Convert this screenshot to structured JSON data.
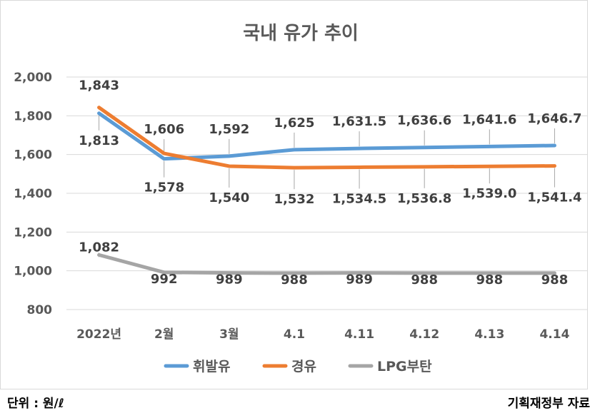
{
  "chart_data": {
    "type": "line",
    "title": "국내 유가 추이",
    "categories": [
      "2022년",
      "2월",
      "3월",
      "4.1",
      "4.11",
      "4.12",
      "4.13",
      "4.14"
    ],
    "ylim": [
      800,
      2000
    ],
    "yticks": [
      "800",
      "1,000",
      "1,200",
      "1,400",
      "1,600",
      "1,800",
      "2,000"
    ],
    "grid": true,
    "legend_position": "bottom",
    "series": [
      {
        "name": "휘발유",
        "color": "#5B9BD5",
        "values": [
          1813,
          1578,
          1592,
          1625,
          1631.5,
          1636.6,
          1641.6,
          1646.7
        ],
        "labels": [
          "1,813",
          "1,578",
          "1,592",
          "1,625",
          "1,631.5",
          "1,636.6",
          "1,641.6",
          "1,646.7"
        ]
      },
      {
        "name": "경유",
        "color": "#ED7D31",
        "values": [
          1843,
          1606,
          1540,
          1532,
          1534.5,
          1536.8,
          1539.0,
          1541.4
        ],
        "labels": [
          "1,843",
          "1,606",
          "1,540",
          "1,532",
          "1,534.5",
          "1,536.8",
          "1,539.0",
          "1,541.4"
        ]
      },
      {
        "name": "LPG부탄",
        "color": "#A5A5A5",
        "values": [
          1082,
          992,
          989,
          988,
          989,
          988,
          988,
          988
        ],
        "labels": [
          "1,082",
          "992",
          "989",
          "988",
          "989",
          "988",
          "988",
          "988"
        ]
      }
    ]
  },
  "footer": {
    "unit": "단위 : 원/ℓ",
    "source": "기획재정부 자료"
  }
}
